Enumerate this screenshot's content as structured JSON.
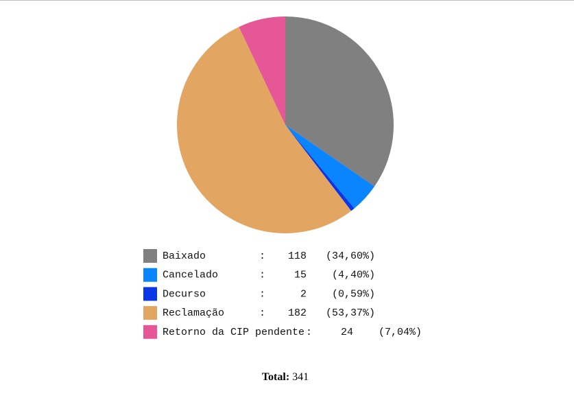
{
  "chart_data": {
    "type": "pie",
    "categories": [
      "Baixado",
      "Cancelado",
      "Decurso",
      "Reclamação",
      "Retorno da CIP pendente"
    ],
    "values": [
      118,
      15,
      2,
      182,
      24
    ],
    "percent_labels": [
      "(34,60%)",
      "(4,40%)",
      "(0,59%)",
      "(53,37%)",
      "(7,04%)"
    ],
    "separator": ":",
    "colors": [
      "#808080",
      "#0a84ff",
      "#0a36e6",
      "#e2a562",
      "#e55797"
    ],
    "total_label": "Total:",
    "total": 341
  }
}
